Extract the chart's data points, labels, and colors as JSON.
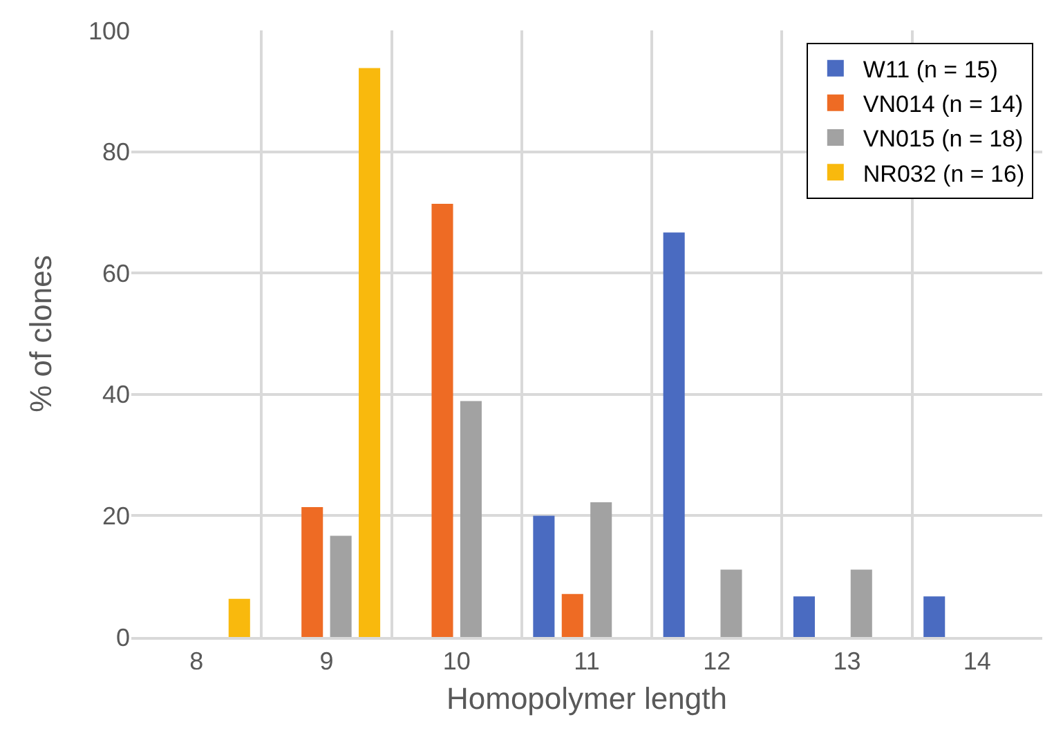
{
  "chart_data": {
    "type": "bar",
    "xlabel": "Homopolymer length",
    "ylabel": "% of clones",
    "categories": [
      "8",
      "9",
      "10",
      "11",
      "12",
      "13",
      "14"
    ],
    "series": [
      {
        "name": "W11 (n = 15)",
        "color": "#4a6bc1",
        "values": [
          0,
          0,
          0,
          20,
          66.7,
          6.7,
          6.7
        ]
      },
      {
        "name": "VN014 (n = 14)",
        "color": "#ee6b24",
        "values": [
          0,
          21.4,
          71.4,
          7.1,
          0,
          0,
          0
        ]
      },
      {
        "name": "VN015 (n = 18)",
        "color": "#a2a2a2",
        "values": [
          0,
          16.7,
          38.9,
          22.2,
          11.1,
          11.1,
          0
        ]
      },
      {
        "name": "NR032 (n = 16)",
        "color": "#f9b90d",
        "values": [
          6.3,
          93.8,
          0,
          0,
          0,
          0,
          0
        ]
      }
    ],
    "ylim": [
      0,
      100
    ],
    "yticks": [
      0,
      20,
      40,
      60,
      80,
      100
    ],
    "grid": true,
    "legend": "top right"
  }
}
